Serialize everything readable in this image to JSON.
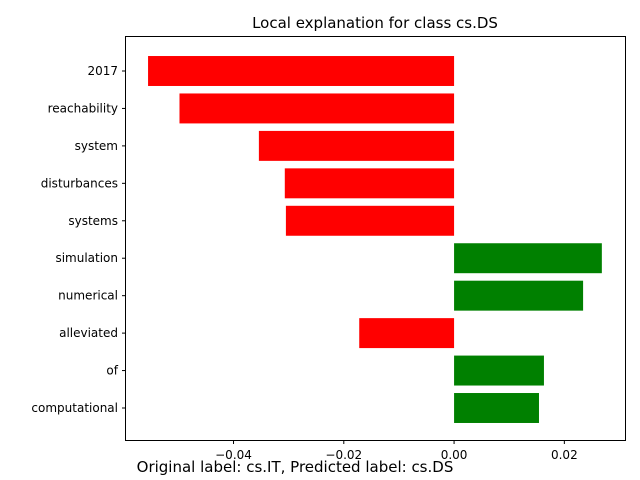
{
  "chart_data": {
    "type": "bar",
    "orientation": "horizontal",
    "title": "Local explanation for class cs.DS",
    "categories": [
      "2017",
      "reachability",
      "system",
      "disturbances",
      "systems",
      "simulation",
      "numerical",
      "alleviated",
      "of",
      "computational"
    ],
    "values": [
      -0.0555,
      -0.0498,
      -0.0354,
      -0.0307,
      -0.0305,
      0.0268,
      0.0234,
      -0.0172,
      0.0163,
      0.0154
    ],
    "xlim": [
      -0.0595,
      0.031
    ],
    "x_ticks": [
      -0.04,
      -0.02,
      0.0,
      0.02
    ],
    "x_tick_labels": [
      "−0.04",
      "−0.02",
      "0.00",
      "0.02"
    ],
    "xlabel": "",
    "ylabel": "",
    "grid": false,
    "colors": {
      "positive": "#008000",
      "negative": "#ff0000"
    }
  },
  "caption": "Original label: cs.IT, Predicted label: cs.DS"
}
